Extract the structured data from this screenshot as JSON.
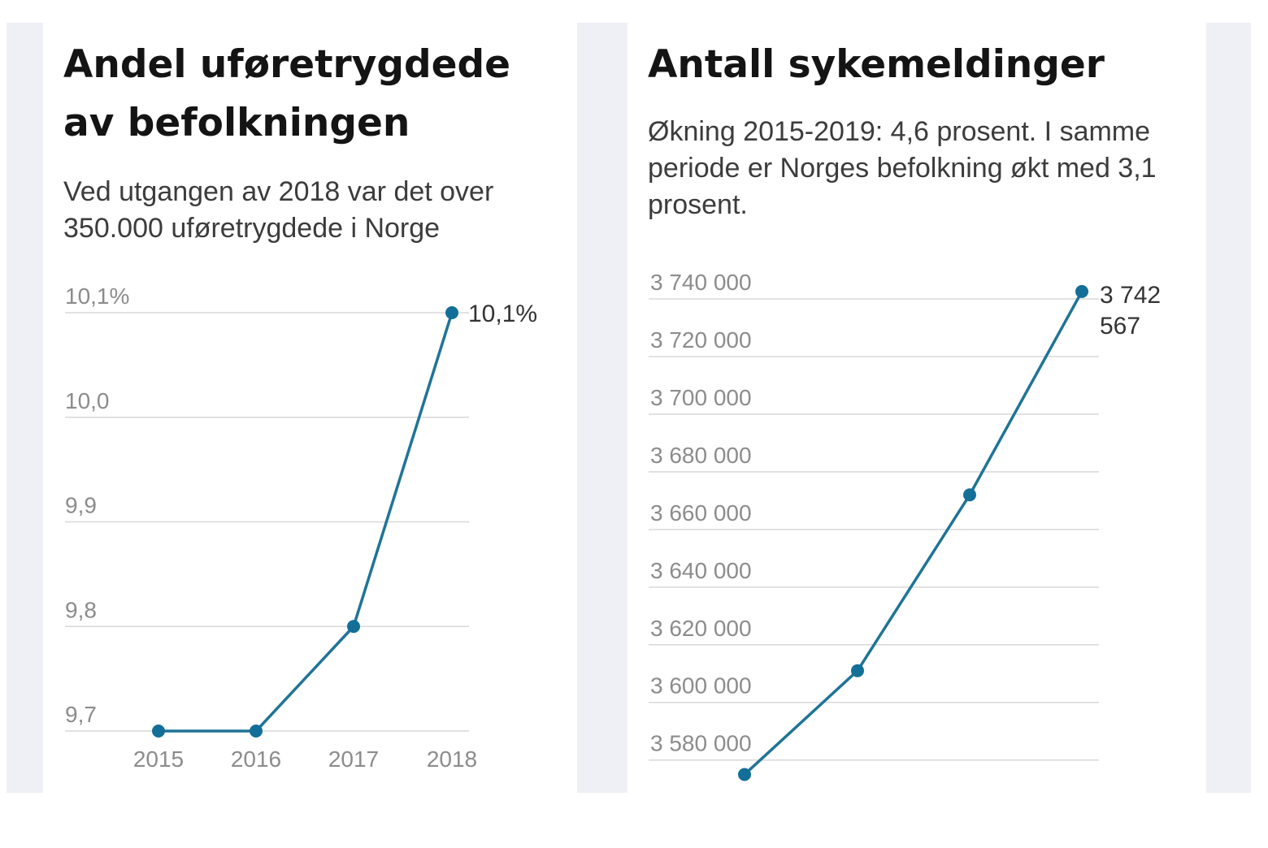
{
  "colors": {
    "line": "#1f7496",
    "point": "#136f98"
  },
  "chart_data": [
    {
      "type": "line",
      "title": "Andel uføretrygdede av befolkningen",
      "subtitle": "Ved utgangen av 2018 var det over 350.000 uføretrygdede i Norge",
      "categories": [
        "2015",
        "2016",
        "2017",
        "2018"
      ],
      "values": [
        9.7,
        9.7,
        9.8,
        10.1
      ],
      "ylim": [
        9.7,
        10.1
      ],
      "yticks": [
        10.1,
        10.0,
        9.9,
        9.8,
        9.7
      ],
      "ytick_labels": [
        "10,1%",
        "10,0",
        "9,9",
        "9,8",
        "9,7"
      ],
      "data_labels": [
        {
          "index": 3,
          "text": "10,1%"
        }
      ],
      "grid": true,
      "legend": "none"
    },
    {
      "type": "line",
      "title": "Antall sykemeldinger",
      "subtitle": "Økning 2015-2019: 4,6 prosent. I samme periode er Norges befolkning økt med 3,1 prosent.",
      "values": [
        3575000,
        3611000,
        3672000,
        3742567
      ],
      "ylim": [
        3574000,
        3740000
      ],
      "yticks": [
        3740000,
        3720000,
        3700000,
        3680000,
        3660000,
        3640000,
        3620000,
        3600000,
        3580000
      ],
      "ytick_labels": [
        "3 740 000",
        "3 720 000",
        "3 700 000",
        "3 680 000",
        "3 660 000",
        "3 640 000",
        "3 620 000",
        "3 600 000",
        "3 580 000"
      ],
      "data_labels": [
        {
          "index": 3,
          "lines": [
            "3 742",
            "567"
          ]
        }
      ],
      "grid": true,
      "legend": "none"
    }
  ]
}
